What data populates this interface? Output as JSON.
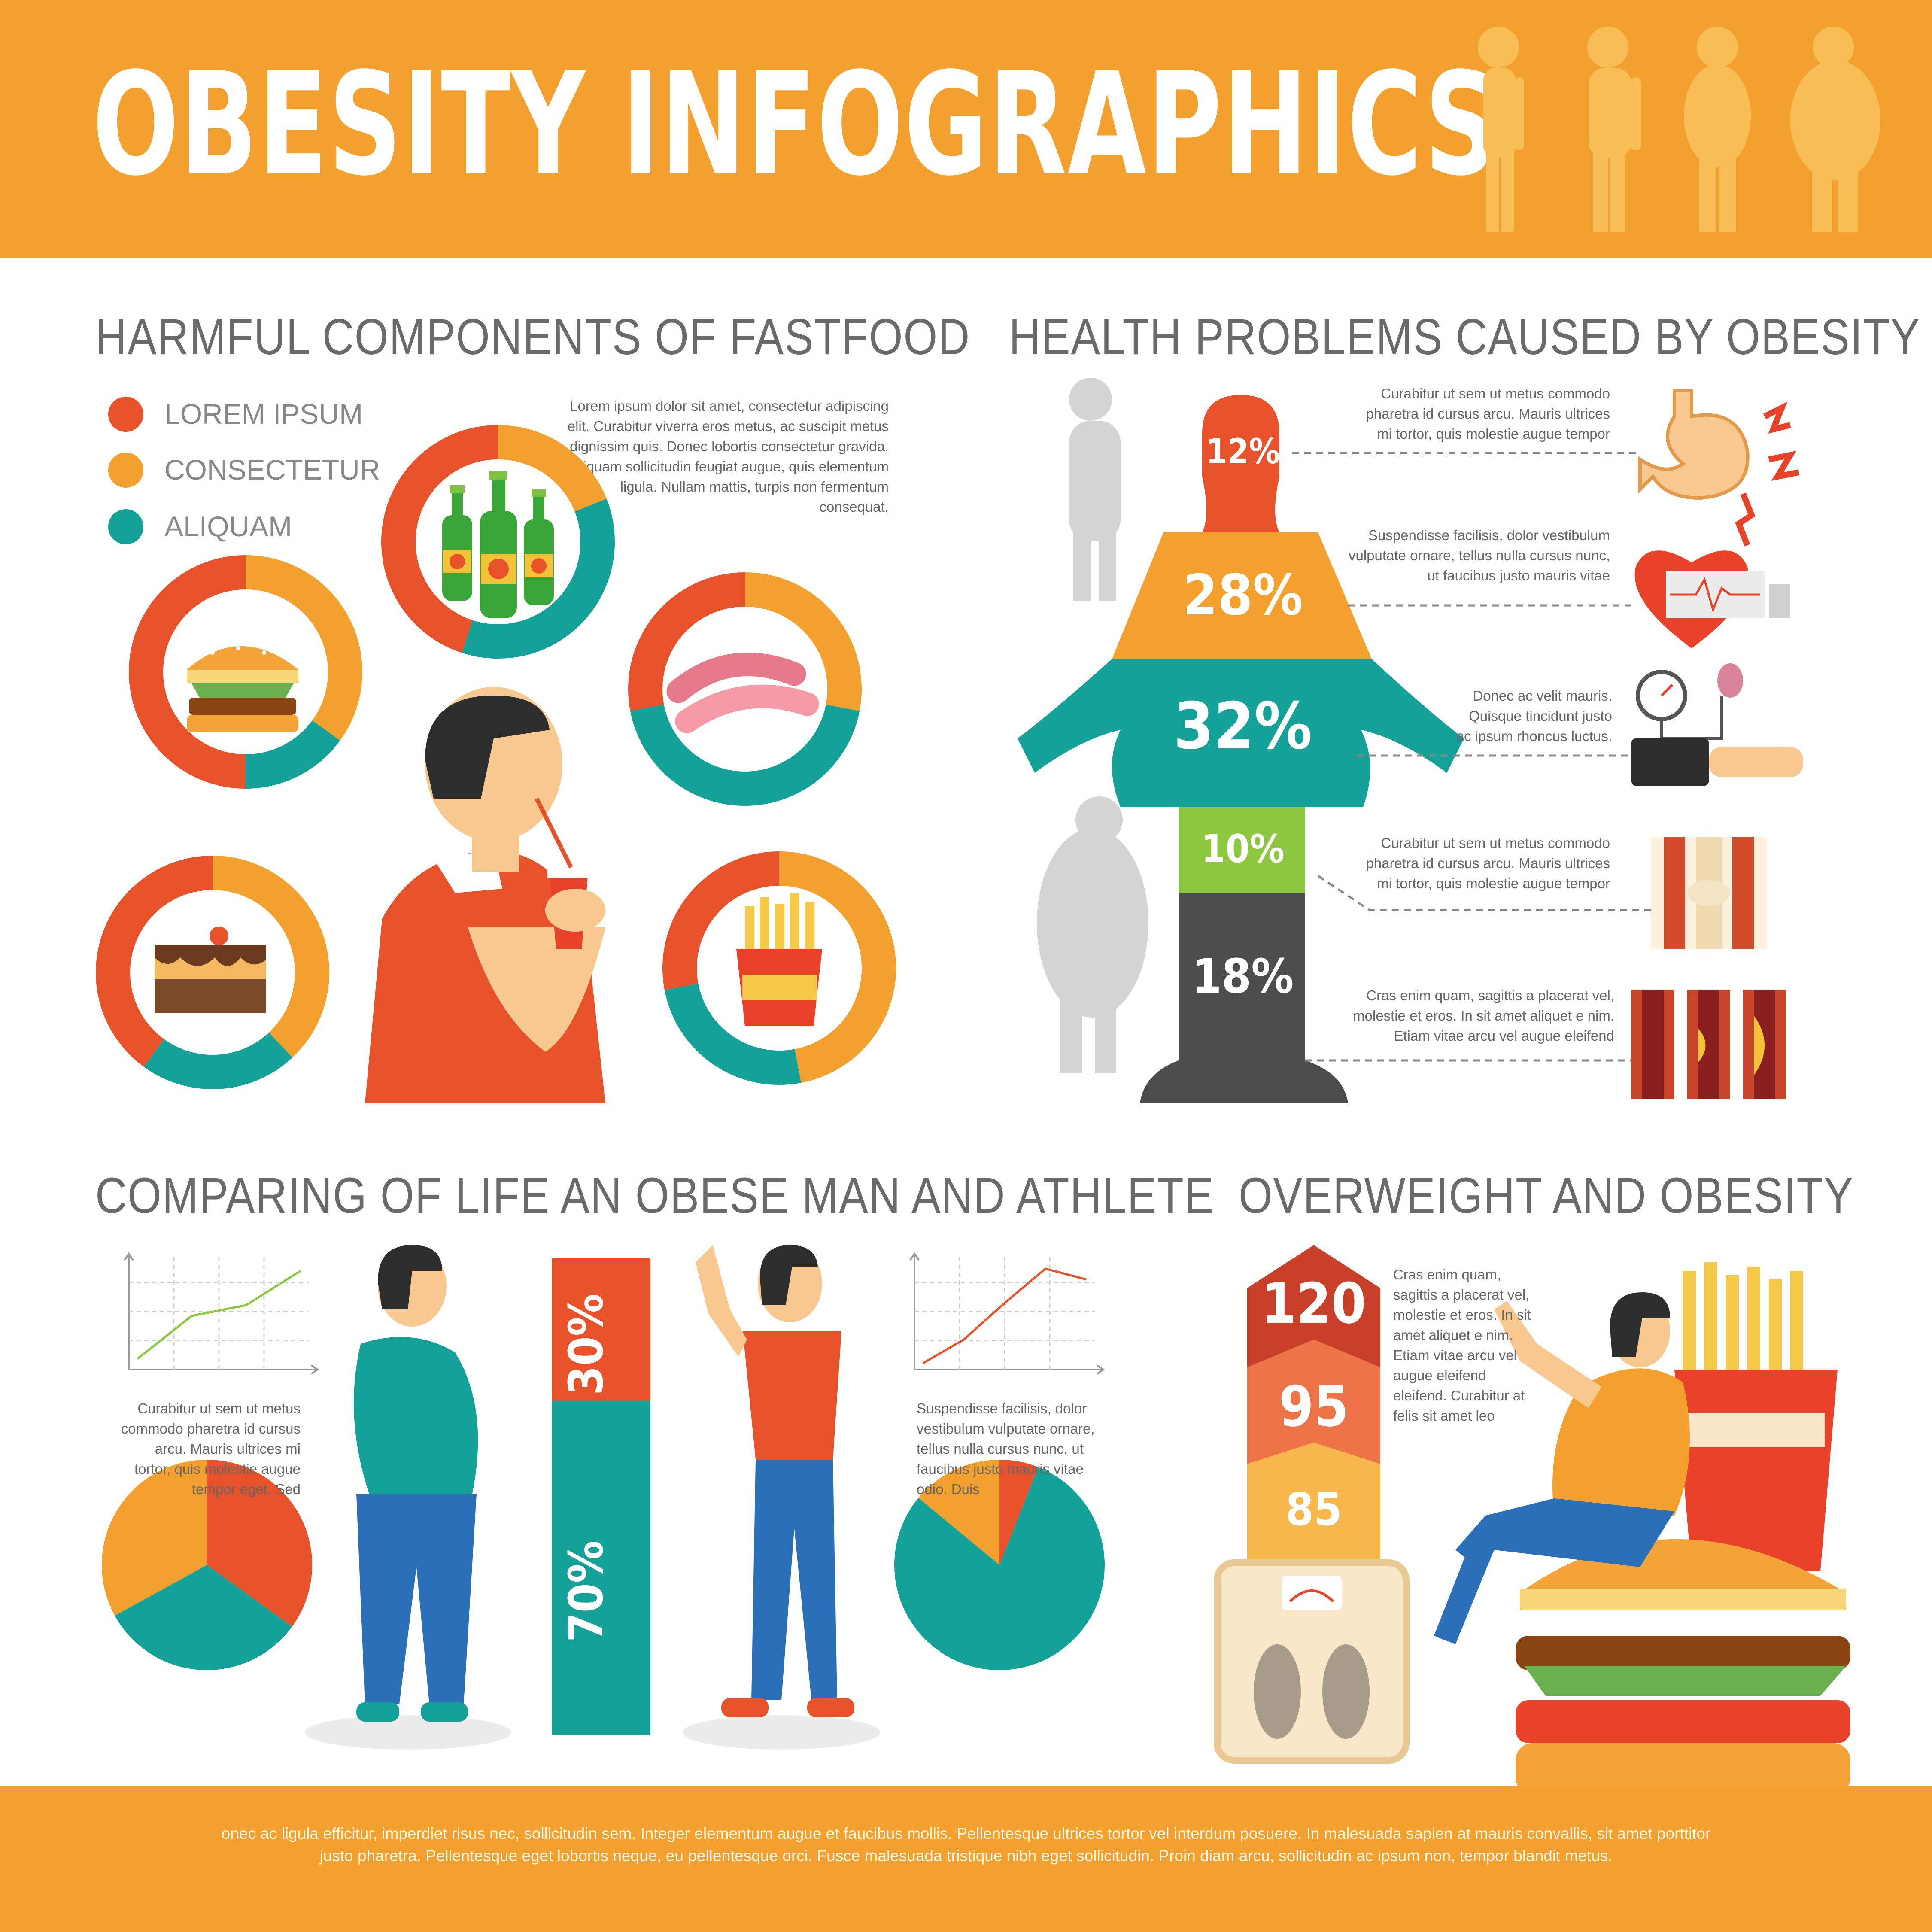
{
  "header": {
    "title": "OBESITY INFOGRAPHICS"
  },
  "colors": {
    "orange": "#f3a02e",
    "red_orange": "#e8522a",
    "teal": "#14a198",
    "green": "#8dc63f",
    "dark_gray": "#4d4d4d",
    "light_gray": "#cfcfcf"
  },
  "fastfood": {
    "title": "HARMFUL COMPONENTS OF FASTFOOD",
    "legend": [
      {
        "label": "LOREM IPSUM",
        "color": "#e8522a"
      },
      {
        "label": "CONSECTETUR",
        "color": "#f3a02e"
      },
      {
        "label": "ALIQUAM",
        "color": "#14a198"
      }
    ],
    "text": "Lorem ipsum dolor sit amet, consectetur adipiscing elit. Curabitur viverra eros metus, ac suscipit metus dignissim quis. Donec lobortis consectetur gravida. Aliquam sollicitudin feugiat augue, quis elementum ligula. Nullam mattis, turpis non fermentum consequat,",
    "icons": [
      "beer-bottles-icon",
      "burger-icon",
      "sausages-icon",
      "cake-icon",
      "fries-icon",
      "man-drinking-soda-icon"
    ]
  },
  "health": {
    "title": "HEALTH PROBLEMS CAUSED BY OBESITY",
    "items": [
      {
        "text": "Curabitur ut sem ut metus commodo pharetra id cursus arcu. Mauris ultrices mi tortor, quis molestie augue tempor",
        "icon": "stomach-pain-icon"
      },
      {
        "text": "Suspendisse facilisis, dolor vestibulum vulputate ornare, tellus nulla cursus nunc, ut faucibus justo mauris vitae",
        "icon": "heart-cardiogram-icon"
      },
      {
        "text": "Donec ac velit mauris. Quisque tincidunt justo ac ipsum rhoncus luctus.",
        "icon": "blood-pressure-icon"
      },
      {
        "text": "Curabitur ut sem ut metus commodo pharetra id cursus arcu. Mauris ultrices mi tortor, quis molestie augue tempor",
        "icon": "joint-pain-icon"
      },
      {
        "text": "Cras enim quam, sagittis a placerat vel, molestie et eros. In sit amet aliquet e nim. Etiam vitae arcu vel augue eleifend",
        "icon": "artery-plaque-icon"
      }
    ]
  },
  "compare": {
    "title": "COMPARING OF LIFE AN OBESE MAN AND ATHLETE",
    "text_left": "Curabitur ut sem ut metus commodo pharetra id cursus arcu. Mauris ultrices mi tortor, quis molestie augue tempor eget. Sed",
    "text_right": "Suspendisse facilisis, dolor vestibulum vulputate ornare, tellus nulla cursus nunc, ut faucibus justo mauris vitae odio. Duis"
  },
  "overweight": {
    "title": "OVERWEIGHT AND OBESITY",
    "text": "Cras enim quam, sagittis a placerat vel, molestie et eros. In sit amet aliquet e nim. Etiam vitae arcu vel augue eleifend eleifend. Curabitur at felis sit amet leo"
  },
  "footer": {
    "text": "onec ac ligula efficitur, imperdiet risus nec, sollicitudin sem. Integer elementum augue et faucibus mollis. Pellentesque ultrices tortor vel interdum posuere. In malesuada sapien at mauris convallis, sit amet porttitor justo pharetra. Pellentesque eget lobortis neque, eu pellentesque orci. Fusce malesuada tristique nibh eget sollicitudin. Proin diam arcu, sollicitudin ac ipsum non, tempor blandit metus."
  },
  "chart_data": [
    {
      "type": "pie",
      "name": "donut-beer",
      "labels": [
        "LOREM IPSUM",
        "CONSECTETUR",
        "ALIQUAM"
      ],
      "values": [
        45,
        19,
        36
      ]
    },
    {
      "type": "pie",
      "name": "donut-burger",
      "labels": [
        "LOREM IPSUM",
        "CONSECTETUR",
        "ALIQUAM"
      ],
      "values": [
        50,
        35,
        15
      ]
    },
    {
      "type": "pie",
      "name": "donut-sausage",
      "labels": [
        "LOREM IPSUM",
        "CONSECTETUR",
        "ALIQUAM"
      ],
      "values": [
        28,
        28,
        44
      ]
    },
    {
      "type": "pie",
      "name": "donut-cake",
      "labels": [
        "LOREM IPSUM",
        "CONSECTETUR",
        "ALIQUAM"
      ],
      "values": [
        40,
        38,
        22
      ]
    },
    {
      "type": "pie",
      "name": "donut-fries",
      "labels": [
        "LOREM IPSUM",
        "CONSECTETUR",
        "ALIQUAM"
      ],
      "values": [
        28,
        47,
        25
      ]
    },
    {
      "type": "bar",
      "name": "body-stack",
      "categories": [
        "head",
        "shoulders",
        "torso",
        "waist",
        "legs"
      ],
      "values": [
        12,
        28,
        32,
        10,
        18
      ],
      "labels": [
        "12%",
        "28%",
        "32%",
        "10%",
        "18%"
      ]
    },
    {
      "type": "bar",
      "name": "stacked-bar",
      "categories": [
        "top",
        "bottom"
      ],
      "values": [
        30,
        70
      ],
      "labels": [
        "30%",
        "70%"
      ]
    },
    {
      "type": "line",
      "name": "line-obese",
      "x": [
        0,
        1,
        2,
        3
      ],
      "y": [
        0.5,
        2.5,
        3.0,
        4.6
      ],
      "ylim": [
        0,
        5
      ]
    },
    {
      "type": "line",
      "name": "line-athlete",
      "x": [
        0,
        1,
        2,
        3,
        4
      ],
      "y": [
        0.3,
        1.4,
        3.1,
        4.7,
        4.2
      ],
      "ylim": [
        0,
        5
      ]
    },
    {
      "type": "pie",
      "name": "pie-obese",
      "values": [
        35,
        32,
        33
      ]
    },
    {
      "type": "pie",
      "name": "pie-athlete",
      "values": [
        6,
        80,
        14
      ]
    },
    {
      "type": "bar",
      "name": "weight-arrows",
      "categories": [
        "top",
        "middle",
        "bottom"
      ],
      "values": [
        120,
        95,
        85
      ],
      "labels": [
        "120",
        "95",
        "85"
      ]
    }
  ]
}
